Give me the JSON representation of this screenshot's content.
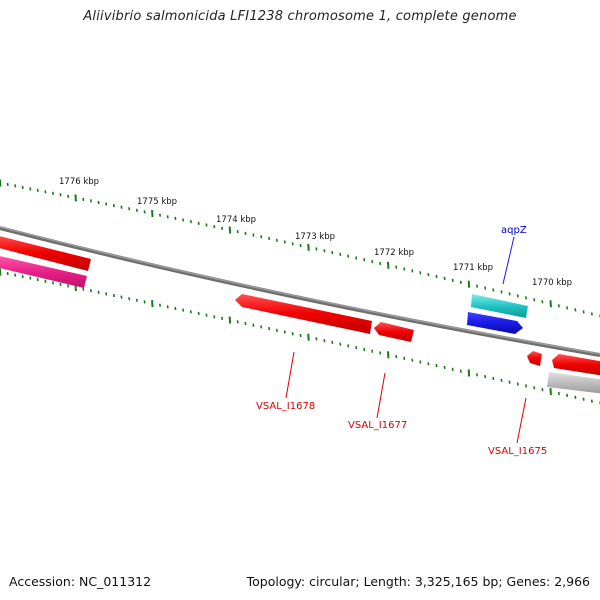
{
  "title": "Aliivibrio salmonicida LFI1238 chromosome 1, complete genome",
  "footer": {
    "accession": "Accession: NC_011312",
    "topology": "Topology: circular; Length: 3,325,165 bp; Genes: 2,966"
  },
  "ticks": [
    "1776 kbp",
    "1775 kbp",
    "1774 kbp",
    "1773 kbp",
    "1772 kbp",
    "1771 kbp",
    "1770 kbp"
  ],
  "gene_labels": {
    "aqpz": "aqpZ",
    "vsal_i1678": "VSAL_I1678",
    "vsal_i1677": "VSAL_I1677",
    "vsal_i1675": "VSAL_I1675"
  },
  "colors": {
    "backbone": "#808080",
    "tick": "#1a7a1a",
    "gene_red": "#ee0000",
    "gene_pink": "#e8208a",
    "gene_cyan": "#22c4c4",
    "gene_blue": "#1a1ae6",
    "gene_gray": "#b8b8b8",
    "label_red": "#dd0000",
    "label_blue": "#0000cc"
  }
}
